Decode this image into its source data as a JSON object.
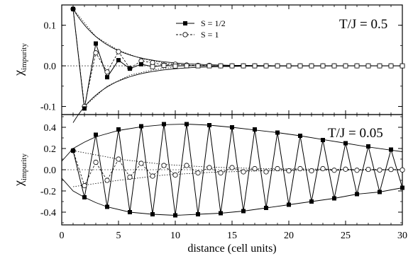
{
  "chart_data": [
    {
      "type": "line",
      "annotation": "T/J = 0.5",
      "ylabel": "χ",
      "ylabel_sub": "impurity",
      "xlim": [
        0,
        30
      ],
      "ylim": [
        -0.12,
        0.15
      ],
      "yticks": [
        -0.1,
        0.0,
        0.1
      ],
      "ytick_labels": [
        "-0.1",
        "0.0",
        "0.1"
      ],
      "legend": {
        "placement": "top-center",
        "entries": [
          "S = 1/2",
          "S = 1"
        ]
      },
      "series": [
        {
          "name": "S = 1/2",
          "marker": "filled-square",
          "line": "solid",
          "x": [
            1,
            2,
            3,
            4,
            5,
            6,
            7,
            8,
            9,
            10,
            11,
            12,
            13,
            14,
            15,
            16,
            17,
            18,
            19,
            20,
            21,
            22,
            23,
            24,
            25,
            26,
            27,
            28,
            29,
            30
          ],
          "y": [
            0.14,
            -0.105,
            0.055,
            -0.028,
            0.014,
            -0.007,
            0.004,
            -0.002,
            0.001,
            -0.0005,
            0.0003,
            0,
            0,
            0,
            0,
            0,
            0,
            0,
            0,
            0,
            0,
            0,
            0,
            0,
            0,
            0,
            0,
            0,
            0,
            0
          ]
        },
        {
          "name": "S = 1",
          "marker": "open-circle",
          "line": "dashed",
          "x": [
            1,
            2,
            3,
            4,
            5,
            6,
            7,
            8,
            9,
            10,
            11,
            12,
            13,
            14,
            15,
            16,
            17,
            18,
            19,
            20,
            21,
            22,
            23,
            24,
            25,
            26,
            27,
            28,
            29,
            30
          ],
          "y": [
            0.14,
            -0.1,
            0.032,
            -0.015,
            0.035,
            -0.006,
            0.012,
            0.008,
            0.002,
            0.004,
            0.002,
            0.001,
            0.001,
            0,
            0,
            0,
            0,
            0,
            0,
            0,
            0,
            0,
            0,
            0,
            0,
            0,
            0,
            0,
            0,
            0
          ]
        }
      ],
      "envelope": {
        "line": "solid",
        "amplitude": 0.14,
        "decay": 0.33,
        "x_start": 1
      },
      "s1_envelope": {
        "line": "dotted",
        "upper": {
          "x": [
            1,
            3,
            5,
            7,
            9,
            11
          ],
          "y": [
            0.14,
            0.072,
            0.038,
            0.018,
            0.007,
            0.002
          ]
        },
        "lower": {
          "x": [
            2,
            4,
            6,
            8,
            10
          ],
          "y": [
            -0.1,
            -0.05,
            -0.023,
            -0.01,
            -0.003
          ]
        }
      }
    },
    {
      "type": "line",
      "annotation": "T/J = 0.05",
      "xlabel": "distance (cell units)",
      "ylabel": "χ",
      "ylabel_sub": "impurity",
      "xlim": [
        0,
        30
      ],
      "ylim": [
        -0.52,
        0.52
      ],
      "yticks": [
        -0.4,
        -0.2,
        0.0,
        0.2,
        0.4
      ],
      "ytick_labels": [
        "-0.4",
        "-0.2",
        "0.0",
        "0.2",
        "0.4"
      ],
      "xticks": [
        0,
        5,
        10,
        15,
        20,
        25,
        30
      ],
      "xtick_labels": [
        "0",
        "5",
        "10",
        "15",
        "20",
        "25",
        "30"
      ],
      "series": [
        {
          "name": "S = 1/2",
          "marker": "filled-square",
          "line": "solid",
          "x": [
            1,
            2,
            3,
            4,
            5,
            6,
            7,
            8,
            9,
            10,
            11,
            12,
            13,
            14,
            15,
            16,
            17,
            18,
            19,
            20,
            21,
            22,
            23,
            24,
            25,
            26,
            27,
            28,
            29,
            30
          ],
          "y": [
            0.18,
            -0.26,
            0.33,
            -0.35,
            0.38,
            -0.4,
            0.41,
            -0.42,
            0.43,
            -0.43,
            0.43,
            -0.42,
            0.42,
            -0.41,
            0.4,
            -0.39,
            0.38,
            -0.36,
            0.35,
            -0.33,
            0.32,
            -0.3,
            0.28,
            -0.27,
            0.25,
            -0.23,
            0.22,
            -0.21,
            0.19,
            -0.17
          ]
        },
        {
          "name": "S = 1",
          "marker": "open-circle",
          "line": "dashed",
          "x": [
            1,
            2,
            3,
            4,
            5,
            6,
            7,
            8,
            9,
            10,
            11,
            12,
            13,
            14,
            15,
            16,
            17,
            18,
            19,
            20,
            21,
            22,
            23,
            24,
            25,
            26,
            27,
            28,
            29,
            30
          ],
          "y": [
            0.18,
            -0.15,
            0.07,
            -0.1,
            0.1,
            -0.07,
            0.06,
            -0.06,
            0.04,
            -0.05,
            0.04,
            -0.03,
            0.02,
            -0.03,
            0.02,
            -0.02,
            0.01,
            -0.02,
            0.01,
            -0.01,
            0.01,
            -0.01,
            0.01,
            -0.005,
            0.005,
            -0.005,
            0.003,
            -0.003,
            0.002,
            -0.002
          ]
        }
      ],
      "envelope": {
        "line": "solid",
        "upper": {
          "x": [
            0,
            1,
            2,
            3,
            5,
            7,
            9,
            11,
            13,
            15,
            17,
            19,
            21,
            23,
            25,
            27,
            29,
            30
          ],
          "y": [
            0.08,
            0.2,
            0.26,
            0.31,
            0.37,
            0.405,
            0.425,
            0.43,
            0.42,
            0.4,
            0.375,
            0.35,
            0.32,
            0.285,
            0.25,
            0.215,
            0.185,
            0.17
          ]
        },
        "lower": {
          "x": [
            0,
            1,
            2,
            3,
            4,
            6,
            8,
            10,
            12,
            14,
            16,
            18,
            20,
            22,
            24,
            26,
            28,
            30
          ],
          "y": [
            -0.08,
            -0.2,
            -0.26,
            -0.31,
            -0.35,
            -0.4,
            -0.42,
            -0.43,
            -0.42,
            -0.41,
            -0.39,
            -0.36,
            -0.33,
            -0.3,
            -0.27,
            -0.23,
            -0.21,
            -0.17
          ]
        }
      },
      "s1_envelope": {
        "line": "dotted",
        "upper": {
          "x": [
            1,
            5,
            9,
            13,
            17,
            21,
            25,
            30
          ],
          "y": [
            0.18,
            0.1,
            0.05,
            0.025,
            0.012,
            0.007,
            0.004,
            0.002
          ]
        },
        "lower": {
          "x": [
            1,
            5,
            9,
            13,
            17,
            21,
            25,
            30
          ],
          "y": [
            -0.16,
            -0.1,
            -0.05,
            -0.025,
            -0.012,
            -0.007,
            -0.004,
            -0.002
          ]
        }
      }
    }
  ]
}
